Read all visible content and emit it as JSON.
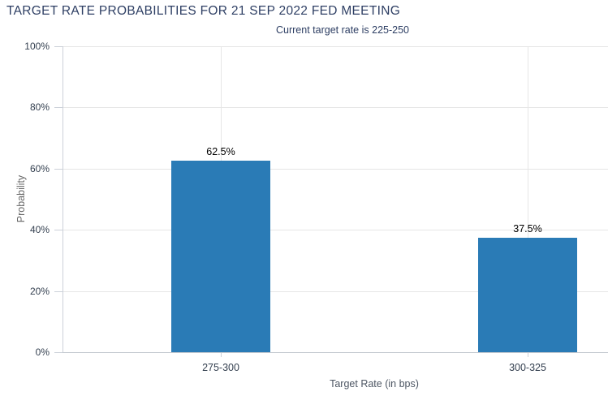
{
  "chart_data": {
    "type": "bar",
    "title": "TARGET RATE PROBABILITIES FOR 21 SEP 2022 FED MEETING",
    "subtitle": "Current target rate is 225-250",
    "categories": [
      "275-300",
      "300-325"
    ],
    "values": [
      62.5,
      37.5
    ],
    "value_labels": [
      "62.5%",
      "37.5%"
    ],
    "xlabel": "Target Rate (in bps)",
    "ylabel": "Probability",
    "ylim": [
      0,
      100
    ],
    "yticks": [
      0,
      20,
      40,
      60,
      80,
      100
    ],
    "ytick_labels": [
      "0%",
      "20%",
      "40%",
      "60%",
      "80%",
      "100%"
    ],
    "grid": true,
    "legend": "none",
    "colors": {
      "bar": "#2a7bb6",
      "grid": "#e6e6e6",
      "axis": "#ccd1d9",
      "title": "#2d3e63",
      "subtitle": "#2d3e63",
      "tick_label": "#333f4f",
      "value_label": "#000000",
      "y_axis_title": "#666666",
      "x_axis_title": "#4d5663",
      "background": "#ffffff"
    }
  }
}
